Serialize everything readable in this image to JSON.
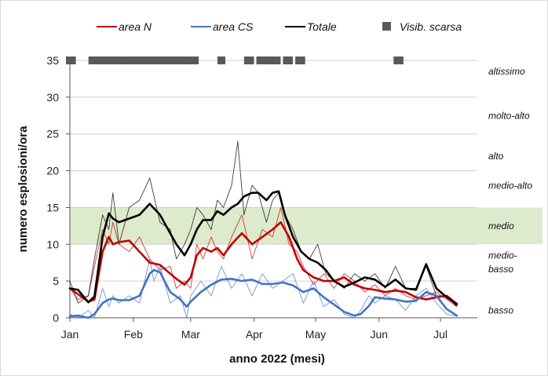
{
  "chart_data": {
    "type": "line",
    "title": "",
    "xlabel": "anno 2022 (mesi)",
    "ylabel": "numero esplosioni/ora",
    "ylim": [
      0,
      35
    ],
    "yticks": [
      0,
      5,
      10,
      15,
      20,
      25,
      30,
      35
    ],
    "x_unit": "day of year 2022",
    "xlim": [
      1,
      200
    ],
    "month_ticks": [
      {
        "label": "Jan",
        "day": 1
      },
      {
        "label": "Feb",
        "day": 32
      },
      {
        "label": "Mar",
        "day": 60
      },
      {
        "label": "Apr",
        "day": 91
      },
      {
        "label": "May",
        "day": 121
      },
      {
        "label": "Jun",
        "day": 152
      },
      {
        "label": "Jul",
        "day": 182
      }
    ],
    "band": {
      "label": "medio",
      "from": 10,
      "to": 15,
      "color": "#d9e8c6"
    },
    "levels": [
      {
        "label": "altissimo",
        "y": 33.5
      },
      {
        "label": "molto-alto",
        "y": 27.5
      },
      {
        "label": "alto",
        "y": 22
      },
      {
        "label": "medio-alto",
        "y": 18
      },
      {
        "label": "medio",
        "y": 12.5
      },
      {
        "label": "medio-",
        "y": 8.5
      },
      {
        "label": "basso",
        "y": 6.6
      },
      {
        "label": "basso",
        "y": 1
      }
    ],
    "legend": {
      "placement": "top",
      "items": [
        {
          "label": "area N",
          "key": "area_n"
        },
        {
          "label": "area CS",
          "key": "area_cs"
        },
        {
          "label": "Totale",
          "key": "totale"
        },
        {
          "label": "Visib. scarsa",
          "key": "visib"
        }
      ]
    },
    "series": [
      {
        "key": "area_n",
        "name": "area N",
        "color": "#c00000",
        "x": [
          1,
          5,
          10,
          13,
          17,
          20,
          22,
          25,
          30,
          35,
          40,
          45,
          50,
          53,
          57,
          60,
          63,
          66,
          70,
          73,
          76,
          80,
          85,
          90,
          95,
          100,
          104,
          108,
          112,
          115,
          120,
          125,
          130,
          135,
          140,
          145,
          150,
          155,
          160,
          165,
          170,
          175,
          180,
          185,
          190
        ],
        "smooth": [
          4,
          3.2,
          2.2,
          2.5,
          9,
          11,
          10,
          10.3,
          10.5,
          9,
          7.5,
          7.2,
          6,
          5.3,
          4.5,
          5.5,
          8.5,
          9.5,
          9,
          9.5,
          8.5,
          10,
          11.5,
          10,
          11,
          12,
          13,
          11,
          8,
          6.5,
          5.5,
          5,
          5,
          5.5,
          4.5,
          4,
          3.8,
          3.5,
          3.7,
          3.5,
          2.8,
          2.5,
          2.8,
          3,
          1.9
        ],
        "daily": [
          4,
          2.5,
          3,
          7,
          12,
          10,
          13,
          10,
          9,
          11,
          8,
          6.5,
          7,
          4,
          5,
          4,
          10,
          8,
          11,
          9,
          8,
          11,
          14,
          8,
          12,
          11,
          15,
          10,
          9,
          7,
          4.5,
          6,
          4,
          6,
          5,
          3.5,
          4.5,
          3,
          4,
          3,
          2.5,
          3,
          3.5,
          2.5,
          1.5
        ]
      },
      {
        "key": "area_cs",
        "name": "area CS",
        "color": "#4472c4",
        "x": [
          1,
          5,
          10,
          13,
          17,
          20,
          22,
          25,
          30,
          35,
          40,
          42,
          45,
          50,
          55,
          58,
          60,
          65,
          70,
          75,
          80,
          85,
          90,
          95,
          100,
          105,
          110,
          115,
          120,
          125,
          130,
          135,
          140,
          143,
          147,
          150,
          155,
          160,
          165,
          170,
          175,
          180,
          185,
          190
        ],
        "smooth": [
          0.2,
          0.3,
          0,
          0.5,
          2,
          2.5,
          2.6,
          2.4,
          2.4,
          3,
          6,
          6.5,
          6.2,
          3.5,
          2.5,
          1.5,
          2.2,
          3.5,
          4.5,
          5.2,
          5.3,
          5,
          5.2,
          4.6,
          4.6,
          4.8,
          4.4,
          3.5,
          4,
          2.8,
          1.8,
          0.8,
          0.3,
          0.5,
          1.6,
          2.8,
          2.6,
          2.5,
          2.2,
          2.3,
          3.5,
          3,
          1.2,
          0.3
        ],
        "daily": [
          0.5,
          0,
          1,
          0,
          4,
          1.5,
          3,
          2,
          3,
          2,
          8,
          5,
          7,
          2,
          3,
          0,
          3,
          5,
          3,
          7,
          4,
          6,
          3,
          6,
          4,
          5,
          6,
          2,
          5,
          1.5,
          2.5,
          0.5,
          0,
          1,
          3,
          2,
          3,
          2.5,
          1,
          3,
          4,
          2,
          0.5,
          0.2
        ]
      },
      {
        "key": "totale",
        "name": "Totale",
        "color": "#000000",
        "x": [
          1,
          5,
          10,
          13,
          17,
          20,
          22,
          25,
          30,
          35,
          40,
          45,
          50,
          53,
          57,
          60,
          63,
          66,
          70,
          73,
          76,
          80,
          83,
          86,
          90,
          93,
          97,
          100,
          103,
          106,
          110,
          114,
          118,
          122,
          126,
          130,
          135,
          140,
          145,
          150,
          155,
          160,
          165,
          170,
          175,
          180,
          185,
          190
        ],
        "smooth": [
          4,
          3.8,
          2.1,
          2.9,
          11,
          14.2,
          13.5,
          13,
          13.5,
          14,
          15.5,
          14,
          11.5,
          10,
          8.5,
          10,
          12,
          13.3,
          13.3,
          14.5,
          14,
          15,
          15.5,
          16.5,
          17,
          17,
          16,
          17,
          17.2,
          14,
          11,
          9,
          8,
          7.5,
          6.5,
          5,
          4.2,
          4.8,
          5.5,
          5.2,
          4.2,
          5.2,
          4,
          3.8,
          7.3,
          4,
          2.8,
          1.8
        ],
        "daily": [
          5,
          2,
          3,
          8,
          14,
          12,
          17,
          10,
          15,
          16,
          19,
          13,
          12,
          8,
          10,
          12,
          15,
          14,
          12,
          16,
          15,
          18,
          24,
          14,
          18,
          17,
          13,
          16,
          17,
          14,
          12,
          9,
          8,
          10,
          6,
          5,
          4,
          6,
          5,
          6,
          4,
          7,
          4,
          4,
          7,
          3,
          3,
          1.5
        ]
      }
    ],
    "visib_scarsa": {
      "name": "Visib. scarsa",
      "y": 35,
      "color": "#595959",
      "days": [
        1,
        2,
        12,
        13,
        14,
        15,
        17,
        18,
        20,
        21,
        22,
        23,
        24,
        25,
        27,
        28,
        29,
        30,
        31,
        32,
        35,
        36,
        37,
        40,
        41,
        42,
        44,
        45,
        46,
        47,
        49,
        50,
        52,
        53,
        54,
        56,
        57,
        58,
        60,
        61,
        62,
        75,
        88,
        89,
        94,
        95,
        96,
        97,
        98,
        100,
        101,
        102,
        107,
        108,
        113,
        114,
        161,
        162
      ]
    }
  }
}
